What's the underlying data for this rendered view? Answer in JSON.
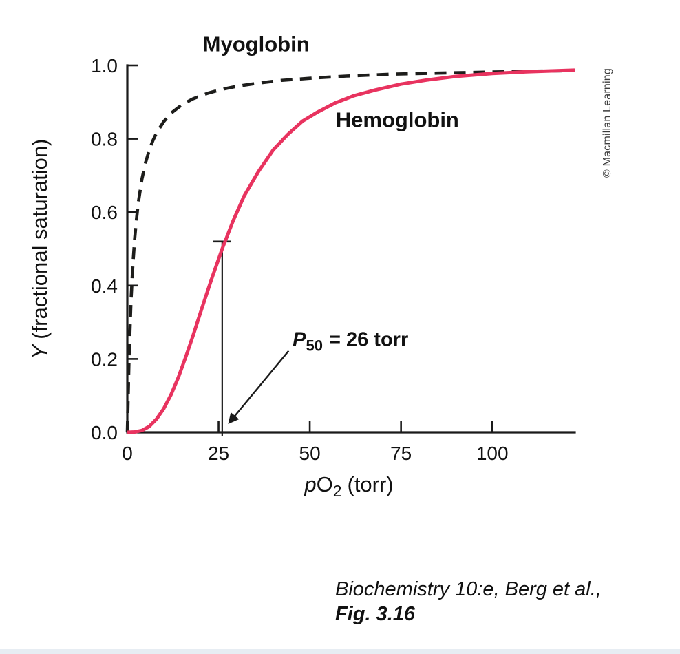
{
  "page": {
    "background": "#ffffff"
  },
  "watermark": {
    "text": "© Macmillan Learning"
  },
  "caption": {
    "line1": "Biochemistry 10:e, Berg et al.,",
    "line2": "Fig. 3.16"
  },
  "chart_data": {
    "type": "line",
    "title": "",
    "xlabel_parts": {
      "italic": "p",
      "main": "O",
      "sub": "2",
      "rest": "(torr)"
    },
    "ylabel_parts": {
      "italic": "Y",
      "rest": "(fractional saturation)"
    },
    "xlim": [
      0,
      122.6
    ],
    "ylim": [
      0,
      1.0
    ],
    "x_ticks": [
      0,
      25,
      50,
      75,
      100
    ],
    "y_ticks": [
      0.0,
      0.2,
      0.4,
      0.6,
      0.8,
      1.0
    ],
    "grid": false,
    "axis_color": "#1a1a1a",
    "series": [
      {
        "name": "Myoglobin",
        "color": "#1d1d1b",
        "style": "dashed",
        "label_pos": {
          "x": 35.3,
          "y": 1.038
        },
        "points": [
          [
            0,
            0
          ],
          [
            0.5,
            0.217
          ],
          [
            1,
            0.357
          ],
          [
            1.5,
            0.455
          ],
          [
            2,
            0.526
          ],
          [
            2.5,
            0.581
          ],
          [
            3,
            0.625
          ],
          [
            4,
            0.69
          ],
          [
            5,
            0.735
          ],
          [
            6,
            0.769
          ],
          [
            7,
            0.795
          ],
          [
            8,
            0.816
          ],
          [
            10,
            0.847
          ],
          [
            12,
            0.87
          ],
          [
            15,
            0.893
          ],
          [
            18,
            0.909
          ],
          [
            22,
            0.924
          ],
          [
            26,
            0.935
          ],
          [
            30,
            0.943
          ],
          [
            36,
            0.952
          ],
          [
            42,
            0.959
          ],
          [
            50,
            0.965
          ],
          [
            60,
            0.971
          ],
          [
            72,
            0.976
          ],
          [
            85,
            0.979
          ],
          [
            100,
            0.982
          ],
          [
            110,
            0.984
          ],
          [
            122.6,
            0.986
          ]
        ]
      },
      {
        "name": "Hemoglobin",
        "color": "#e8335f",
        "style": "solid",
        "label_pos": {
          "x": 74.0,
          "y": 0.832
        },
        "points": [
          [
            0,
            0
          ],
          [
            2,
            0.001
          ],
          [
            4,
            0.005
          ],
          [
            6,
            0.016
          ],
          [
            8,
            0.036
          ],
          [
            10,
            0.065
          ],
          [
            12,
            0.103
          ],
          [
            14,
            0.15
          ],
          [
            16,
            0.205
          ],
          [
            18,
            0.263
          ],
          [
            20,
            0.325
          ],
          [
            23,
            0.415
          ],
          [
            26,
            0.5
          ],
          [
            29,
            0.577
          ],
          [
            32,
            0.644
          ],
          [
            36,
            0.712
          ],
          [
            40,
            0.77
          ],
          [
            44,
            0.812
          ],
          [
            48,
            0.848
          ],
          [
            52,
            0.872
          ],
          [
            57,
            0.898
          ],
          [
            62,
            0.917
          ],
          [
            68,
            0.933
          ],
          [
            75,
            0.949
          ],
          [
            82,
            0.96
          ],
          [
            90,
            0.97
          ],
          [
            100,
            0.978
          ],
          [
            110,
            0.983
          ],
          [
            122.6,
            0.987
          ]
        ]
      }
    ],
    "annotation": {
      "symbol": "P",
      "sub": "50",
      "rest": "= 26 torr",
      "p50_value": 26,
      "marker_x": 26,
      "marker_y_top": 0.52,
      "text_pos": {
        "x": 45.3,
        "y": 0.235
      },
      "arrow_from": {
        "x": 44.2,
        "y": 0.222
      },
      "arrow_to": {
        "x": 27.9,
        "y": 0.026
      }
    }
  }
}
